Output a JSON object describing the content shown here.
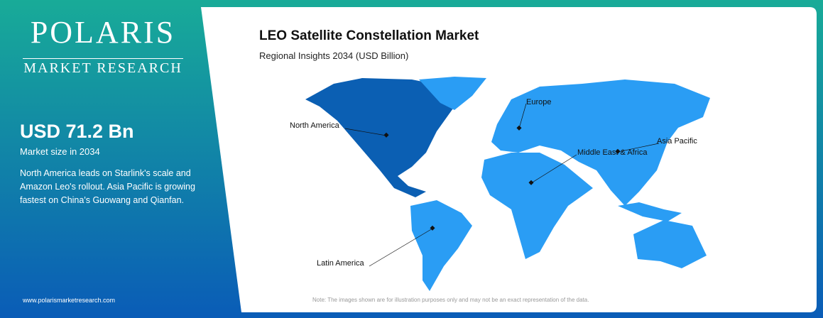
{
  "header": {
    "logo": "POLARIS",
    "tagline": "MARKET RESEARCH"
  },
  "summary": {
    "value": "USD 71.2 Bn",
    "label": "Market size in 2034",
    "description": "North America leads on Starlink's scale and Amazon Leo's rollout. Asia Pacific is growing fastest on China's Guowang and Qianfan."
  },
  "footer": {
    "website": "www.polarismarketresearch.com"
  },
  "map": {
    "title": "LEO Satellite Constellation Market",
    "subtitle": "Regional Insights 2034 (USD Billion)",
    "regions": [
      "North America",
      "Europe",
      "Middle East & Africa",
      "Asia Pacific",
      "Latin America"
    ],
    "note": "Note: The images shown are for illustration purposes only and may not be an exact representation of the data."
  }
}
